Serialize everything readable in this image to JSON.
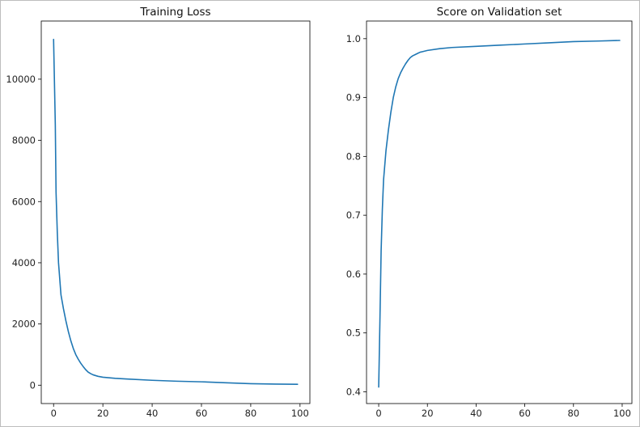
{
  "chart_data": [
    {
      "type": "line",
      "title": "Training Loss",
      "xlabel": "",
      "ylabel": "",
      "xlim": [
        -5,
        104
      ],
      "ylim": [
        -600,
        11900
      ],
      "xticks": [
        0,
        20,
        40,
        60,
        80,
        100
      ],
      "yticks": [
        0,
        2000,
        4000,
        6000,
        8000,
        10000
      ],
      "grid": false,
      "color": "#1f77b4",
      "series": [
        {
          "x": [
            0,
            0.7,
            1,
            1.5,
            2,
            3,
            4,
            5,
            6,
            7,
            8,
            9,
            10,
            11,
            12,
            13,
            14,
            15,
            16,
            18,
            20,
            25,
            30,
            40,
            50,
            60,
            70,
            80,
            90,
            99
          ],
          "values": [
            11300,
            8500,
            6300,
            5000,
            4000,
            2950,
            2500,
            2100,
            1750,
            1450,
            1200,
            1000,
            850,
            720,
            610,
            510,
            430,
            380,
            340,
            290,
            260,
            225,
            200,
            160,
            130,
            110,
            80,
            50,
            35,
            30
          ]
        }
      ]
    },
    {
      "type": "line",
      "title": "Score on Validation set",
      "xlabel": "",
      "ylabel": "",
      "xlim": [
        -5,
        104
      ],
      "ylim": [
        0.38,
        1.03
      ],
      "xticks": [
        0,
        20,
        40,
        60,
        80,
        100
      ],
      "yticks": [
        0.4,
        0.5,
        0.6,
        0.7,
        0.8,
        0.9,
        1.0
      ],
      "ytick_labels": [
        "0.4",
        "0.5",
        "0.6",
        "0.7",
        "0.8",
        "0.9",
        "1.0"
      ],
      "grid": false,
      "color": "#1f77b4",
      "series": [
        {
          "x": [
            0,
            0.5,
            1,
            1.5,
            2,
            3,
            4,
            5,
            6,
            7,
            8,
            9,
            10,
            11,
            12,
            13,
            14,
            15,
            16,
            17,
            18,
            20,
            25,
            30,
            40,
            50,
            60,
            70,
            80,
            90,
            99
          ],
          "values": [
            0.408,
            0.52,
            0.64,
            0.71,
            0.76,
            0.81,
            0.845,
            0.875,
            0.9,
            0.918,
            0.932,
            0.942,
            0.95,
            0.957,
            0.963,
            0.968,
            0.971,
            0.973,
            0.975,
            0.977,
            0.978,
            0.98,
            0.983,
            0.985,
            0.987,
            0.989,
            0.991,
            0.993,
            0.995,
            0.996,
            0.997
          ]
        }
      ]
    }
  ]
}
